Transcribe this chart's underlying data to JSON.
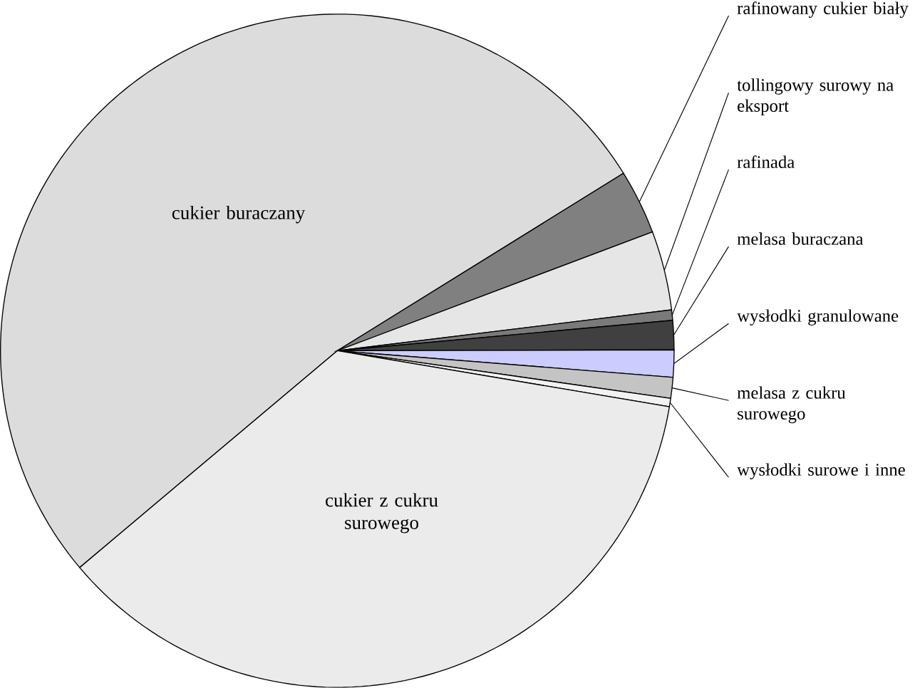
{
  "chart_data": {
    "type": "pie",
    "categories": [
      "cukier buraczany",
      "rafinowany cukier biały",
      "tollingowy surowy na eksport",
      "rafinada",
      "melasa buraczana",
      "wysłodki granulowane",
      "melasa z cukru surowego",
      "wysłodki surowe i inne",
      "cukier z cukru surowego"
    ],
    "values": [
      52.3,
      3.1,
      3.8,
      0.5,
      1.4,
      1.3,
      1.0,
      0.4,
      36.2
    ],
    "colors": [
      "#dcdcdc",
      "#808080",
      "#e6e6e6",
      "#7a7a7a",
      "#404040",
      "#ccccff",
      "#c4c4c4",
      "#f2f2f2",
      "#ebebeb"
    ]
  }
}
